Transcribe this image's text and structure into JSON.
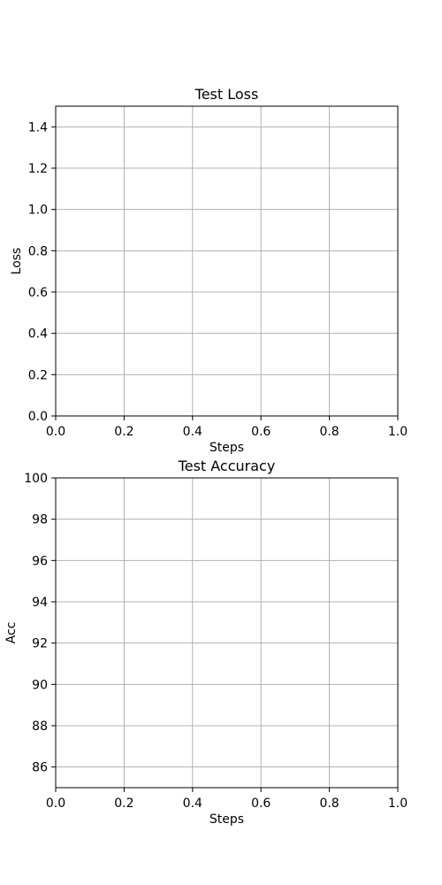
{
  "chart_data": [
    {
      "type": "line",
      "title": "Test Loss",
      "xlabel": "Steps",
      "ylabel": "Loss",
      "xlim": [
        0.0,
        1.0
      ],
      "ylim": [
        0.0,
        1.5
      ],
      "x_ticks": [
        0.0,
        0.2,
        0.4,
        0.6,
        0.8,
        1.0
      ],
      "x_tick_labels": [
        "0.0",
        "0.2",
        "0.4",
        "0.6",
        "0.8",
        "1.0"
      ],
      "y_ticks": [
        0.0,
        0.2,
        0.4,
        0.6,
        0.8,
        1.0,
        1.2,
        1.4
      ],
      "y_tick_labels": [
        "0.0",
        "0.2",
        "0.4",
        "0.6",
        "0.8",
        "1.0",
        "1.2",
        "1.4"
      ],
      "grid": true,
      "series": []
    },
    {
      "type": "line",
      "title": "Test Accuracy",
      "xlabel": "Steps",
      "ylabel": "Acc",
      "xlim": [
        0.0,
        1.0
      ],
      "ylim": [
        85,
        100
      ],
      "x_ticks": [
        0.0,
        0.2,
        0.4,
        0.6,
        0.8,
        1.0
      ],
      "x_tick_labels": [
        "0.0",
        "0.2",
        "0.4",
        "0.6",
        "0.8",
        "1.0"
      ],
      "y_ticks": [
        86,
        88,
        90,
        92,
        94,
        96,
        98,
        100
      ],
      "y_tick_labels": [
        "86",
        "88",
        "90",
        "92",
        "94",
        "96",
        "98",
        "100"
      ],
      "grid": true,
      "series": []
    }
  ],
  "colors": {
    "grid": "#b0b0b0",
    "axes": "#000000",
    "background": "#ffffff"
  }
}
